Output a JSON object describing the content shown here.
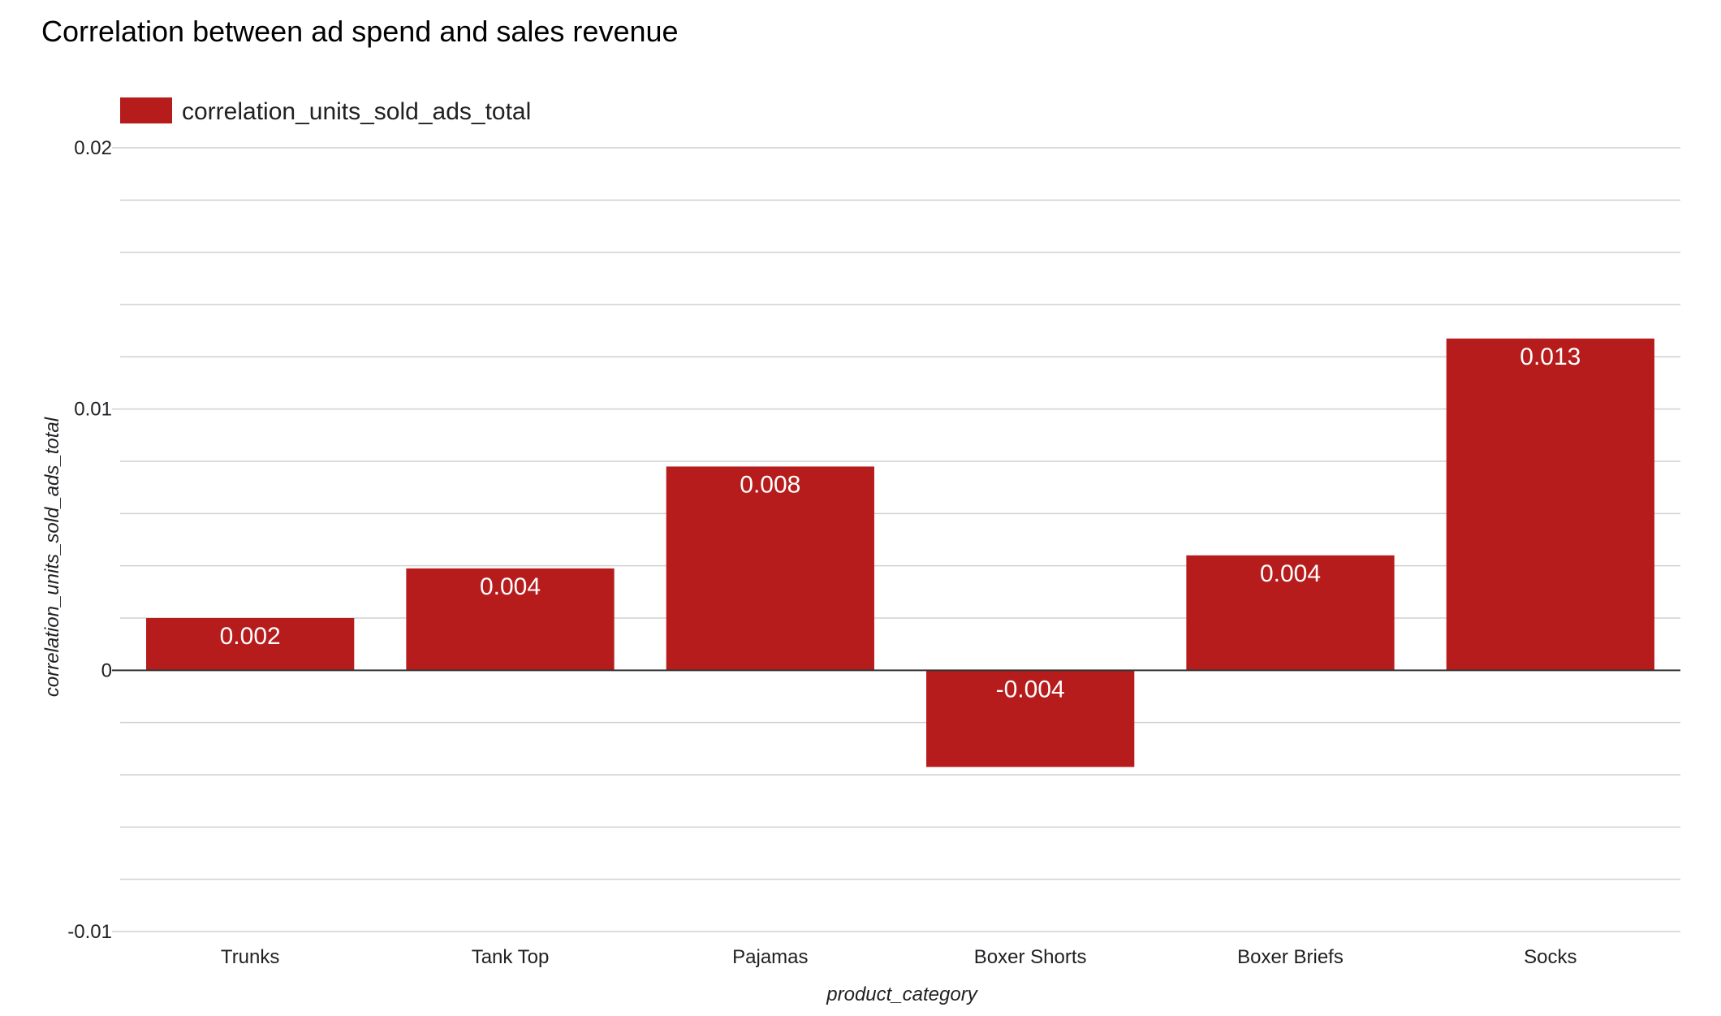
{
  "chart_data": {
    "type": "bar",
    "title": "Correlation between ad spend and sales revenue",
    "xlabel": "product_category",
    "ylabel": "correlation_units_sold_ads_total",
    "categories": [
      "Trunks",
      "Tank Top",
      "Pajamas",
      "Boxer Shorts",
      "Boxer Briefs",
      "Socks"
    ],
    "series": [
      {
        "name": "correlation_units_sold_ads_total",
        "values": [
          0.002,
          0.0039,
          0.0078,
          -0.0037,
          0.0044,
          0.0127
        ],
        "labels": [
          "0.002",
          "0.004",
          "0.008",
          "-0.004",
          "0.004",
          "0.013"
        ],
        "color": "#b71c1c"
      }
    ],
    "ylim": [
      -0.01,
      0.02
    ],
    "yticks": [
      0.02,
      0.01,
      0,
      -0.01
    ],
    "ytick_labels": [
      "0.02",
      "0.01",
      "0",
      "-0.01"
    ],
    "minor_gridlines_per_interval": 5,
    "grid": true,
    "legend_position": "top-left"
  },
  "colors": {
    "bar": "#b71c1c",
    "gridline": "#d0d0d0",
    "zero_line": "#333333",
    "text": "#202124"
  }
}
